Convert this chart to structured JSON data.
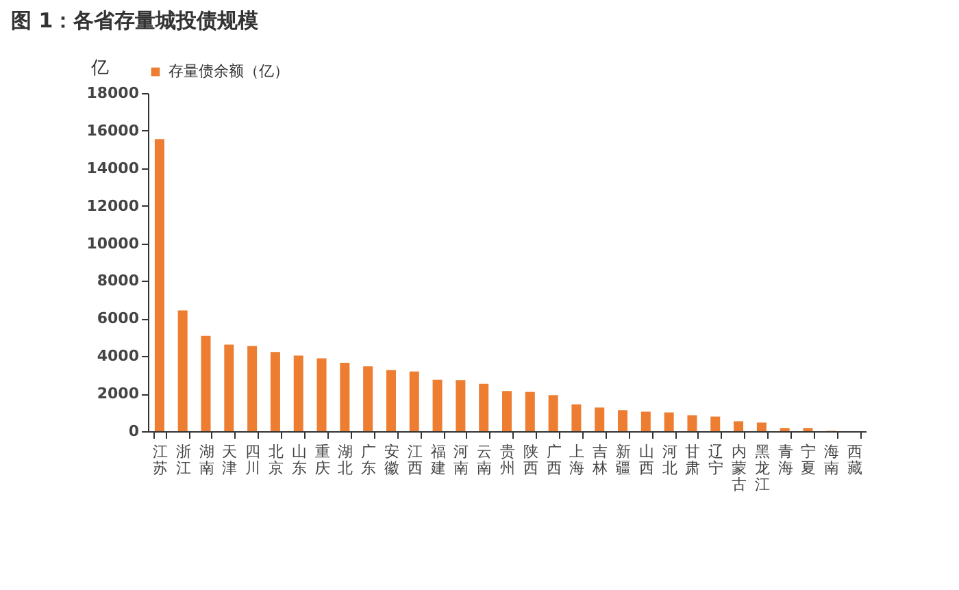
{
  "chart_data": {
    "type": "bar",
    "title": "图 1：各省存量城投债规模",
    "ylabel": "亿",
    "categories": [
      "江苏",
      "浙江",
      "湖南",
      "天津",
      "四川",
      "北京",
      "山东",
      "重庆",
      "湖北",
      "广东",
      "安徽",
      "江西",
      "福建",
      "河南",
      "云南",
      "贵州",
      "陕西",
      "广西",
      "上海",
      "吉林",
      "新疆",
      "山西",
      "河北",
      "甘肃",
      "辽宁",
      "内蒙古",
      "黑龙江",
      "青海",
      "宁夏",
      "海南",
      "西藏"
    ],
    "series": [
      {
        "name": "存量债余额（亿）",
        "color": "#ed7d31",
        "values": [
          15550,
          6430,
          5070,
          4610,
          4540,
          4220,
          4030,
          3880,
          3640,
          3450,
          3250,
          3180,
          2740,
          2720,
          2520,
          2140,
          2090,
          1920,
          1430,
          1260,
          1120,
          1040,
          1000,
          850,
          780,
          530,
          460,
          170,
          170,
          20,
          0
        ]
      }
    ],
    "ylim": [
      0,
      18000
    ],
    "yticks": [
      0,
      2000,
      4000,
      6000,
      8000,
      10000,
      12000,
      14000,
      16000,
      18000
    ],
    "grid": false,
    "legend": "top"
  }
}
